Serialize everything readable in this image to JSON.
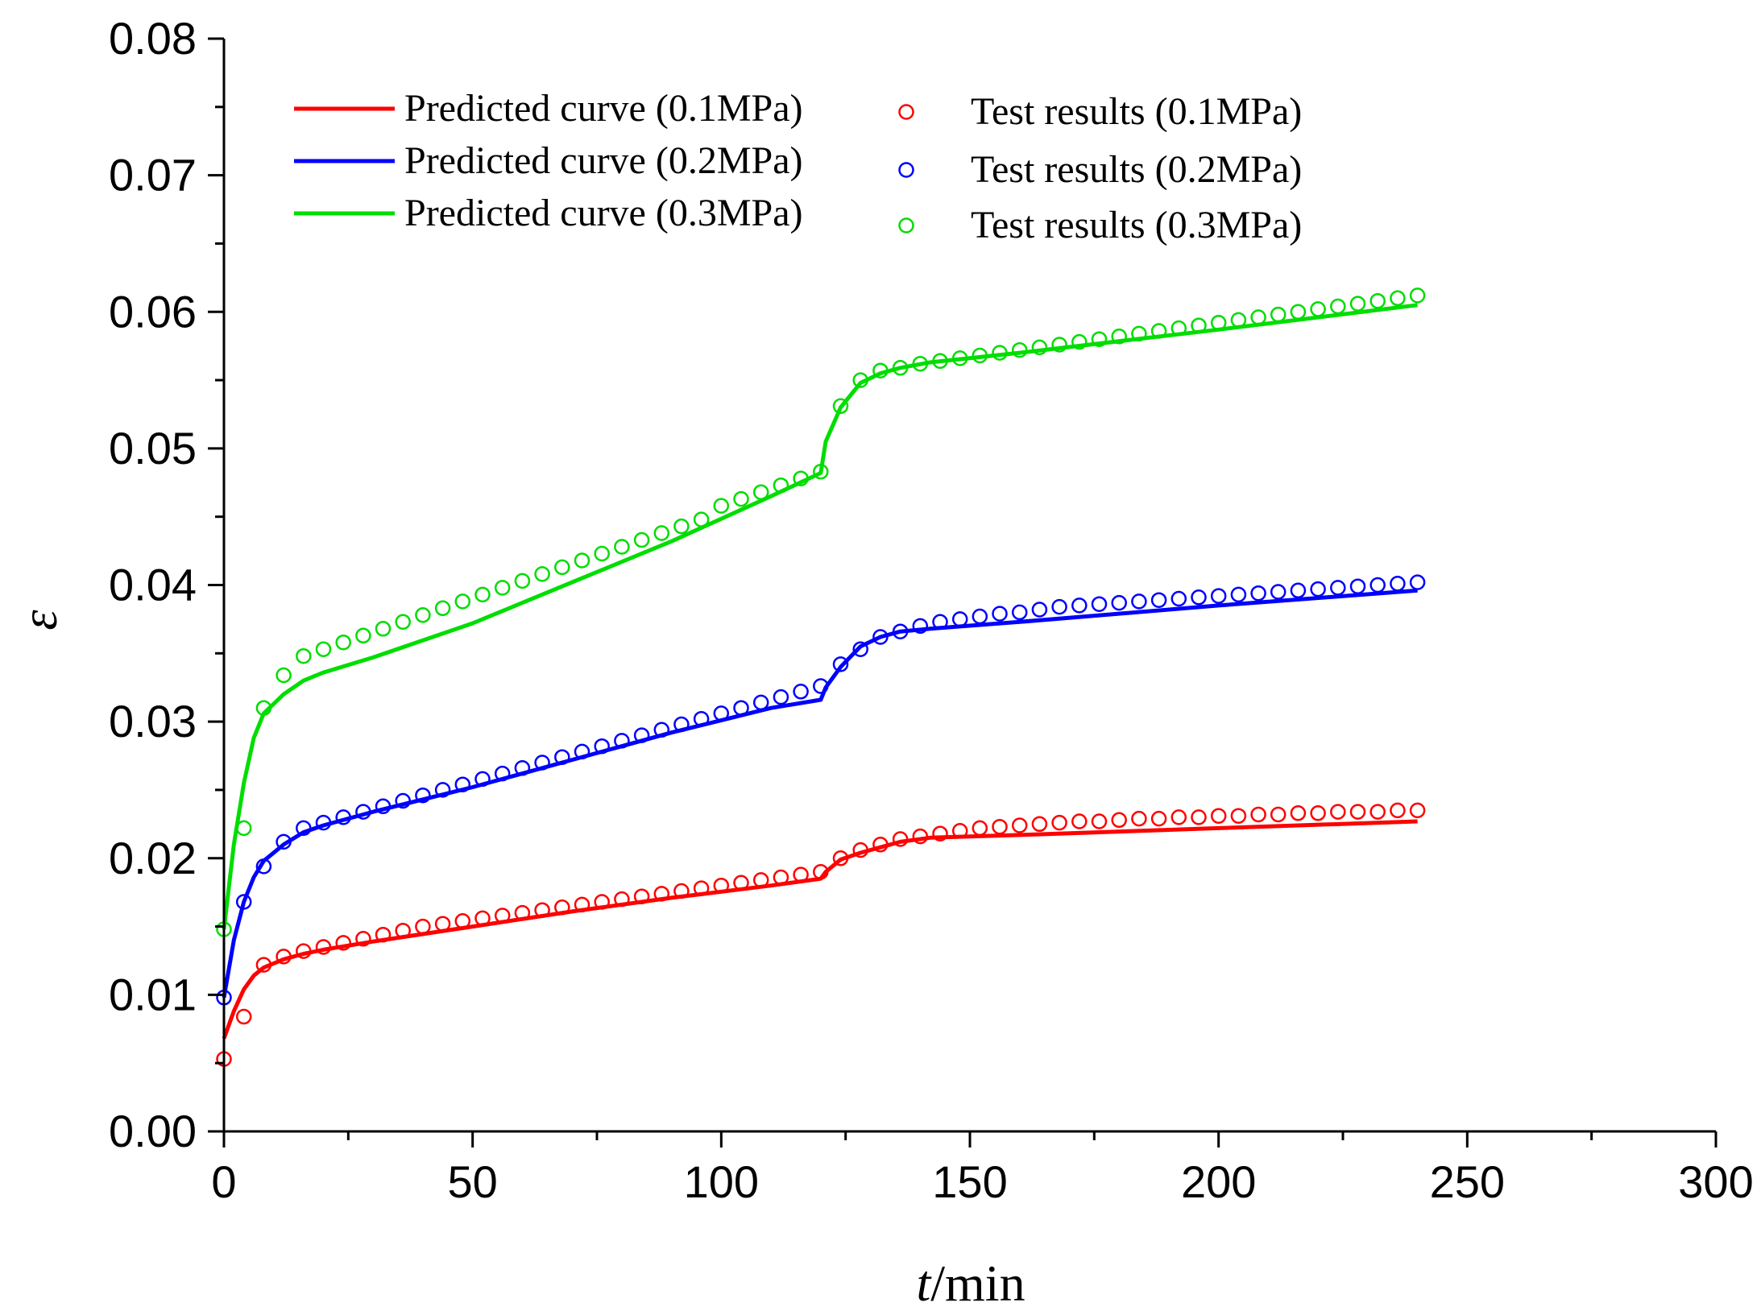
{
  "chart_data": {
    "type": "line",
    "xlabel_italic": "t",
    "xlabel_rest": "/min",
    "ylabel": "ε",
    "xlim": [
      0,
      300
    ],
    "ylim": [
      0,
      0.08
    ],
    "x_ticks": [
      "0",
      "50",
      "100",
      "150",
      "200",
      "250",
      "300"
    ],
    "y_ticks": [
      "0.00",
      "0.01",
      "0.02",
      "0.03",
      "0.04",
      "0.05",
      "0.06",
      "0.07",
      "0.08"
    ],
    "grid": false,
    "legend_position": "top-left",
    "lines": [
      {
        "name": "Predicted curve (0.1MPa)",
        "color": "#ff0000",
        "points": [
          [
            0,
            0.0068
          ],
          [
            2,
            0.0088
          ],
          [
            4,
            0.0104
          ],
          [
            6,
            0.0114
          ],
          [
            8,
            0.012
          ],
          [
            12,
            0.0126
          ],
          [
            16,
            0.013
          ],
          [
            20,
            0.0133
          ],
          [
            30,
            0.0139
          ],
          [
            50,
            0.015
          ],
          [
            70,
            0.0161
          ],
          [
            90,
            0.0171
          ],
          [
            110,
            0.018
          ],
          [
            120,
            0.0185
          ],
          [
            121,
            0.019
          ],
          [
            124,
            0.0199
          ],
          [
            128,
            0.0204
          ],
          [
            132,
            0.0208
          ],
          [
            136,
            0.0212
          ],
          [
            142,
            0.0215
          ],
          [
            160,
            0.0217
          ],
          [
            200,
            0.0222
          ],
          [
            240,
            0.0227
          ]
        ]
      },
      {
        "name": "Predicted curve (0.2MPa)",
        "color": "#0000ff",
        "points": [
          [
            0,
            0.0098
          ],
          [
            2,
            0.014
          ],
          [
            4,
            0.0168
          ],
          [
            6,
            0.0186
          ],
          [
            8,
            0.0198
          ],
          [
            12,
            0.021
          ],
          [
            16,
            0.0219
          ],
          [
            20,
            0.0224
          ],
          [
            30,
            0.0234
          ],
          [
            50,
            0.0252
          ],
          [
            70,
            0.0272
          ],
          [
            90,
            0.0292
          ],
          [
            110,
            0.031
          ],
          [
            120,
            0.0316
          ],
          [
            121,
            0.0325
          ],
          [
            124,
            0.034
          ],
          [
            128,
            0.0355
          ],
          [
            132,
            0.0362
          ],
          [
            136,
            0.0366
          ],
          [
            142,
            0.0368
          ],
          [
            160,
            0.0373
          ],
          [
            200,
            0.0385
          ],
          [
            240,
            0.0396
          ]
        ]
      },
      {
        "name": "Predicted curve (0.3MPa)",
        "color": "#00dd00",
        "points": [
          [
            0,
            0.0148
          ],
          [
            2,
            0.021
          ],
          [
            4,
            0.0255
          ],
          [
            6,
            0.0288
          ],
          [
            8,
            0.0306
          ],
          [
            12,
            0.032
          ],
          [
            16,
            0.033
          ],
          [
            20,
            0.0336
          ],
          [
            30,
            0.0347
          ],
          [
            50,
            0.0372
          ],
          [
            70,
            0.0402
          ],
          [
            90,
            0.0432
          ],
          [
            110,
            0.0465
          ],
          [
            120,
            0.0482
          ],
          [
            121,
            0.0505
          ],
          [
            124,
            0.053
          ],
          [
            128,
            0.0548
          ],
          [
            132,
            0.0555
          ],
          [
            136,
            0.0559
          ],
          [
            142,
            0.0563
          ],
          [
            160,
            0.057
          ],
          [
            200,
            0.0587
          ],
          [
            240,
            0.0605
          ]
        ]
      }
    ],
    "scatter": [
      {
        "name": "Test results (0.1MPa)",
        "color": "#ff0000",
        "points": [
          [
            0,
            0.0053
          ],
          [
            4,
            0.0084
          ],
          [
            8,
            0.0122
          ],
          [
            12,
            0.0128
          ],
          [
            16,
            0.0132
          ],
          [
            20,
            0.0135
          ],
          [
            24,
            0.0138
          ],
          [
            28,
            0.0141
          ],
          [
            32,
            0.0144
          ],
          [
            36,
            0.0147
          ],
          [
            40,
            0.015
          ],
          [
            44,
            0.0152
          ],
          [
            48,
            0.0154
          ],
          [
            52,
            0.0156
          ],
          [
            56,
            0.0158
          ],
          [
            60,
            0.016
          ],
          [
            64,
            0.0162
          ],
          [
            68,
            0.0164
          ],
          [
            72,
            0.0166
          ],
          [
            76,
            0.0168
          ],
          [
            80,
            0.017
          ],
          [
            84,
            0.0172
          ],
          [
            88,
            0.0174
          ],
          [
            92,
            0.0176
          ],
          [
            96,
            0.0178
          ],
          [
            100,
            0.018
          ],
          [
            104,
            0.0182
          ],
          [
            108,
            0.0184
          ],
          [
            112,
            0.0186
          ],
          [
            116,
            0.0188
          ],
          [
            120,
            0.019
          ],
          [
            124,
            0.02
          ],
          [
            128,
            0.0206
          ],
          [
            132,
            0.021
          ],
          [
            136,
            0.0214
          ],
          [
            140,
            0.0216
          ],
          [
            144,
            0.0218
          ],
          [
            148,
            0.022
          ],
          [
            152,
            0.0222
          ],
          [
            156,
            0.0223
          ],
          [
            160,
            0.0224
          ],
          [
            164,
            0.0225
          ],
          [
            168,
            0.0226
          ],
          [
            172,
            0.0227
          ],
          [
            176,
            0.0227
          ],
          [
            180,
            0.0228
          ],
          [
            184,
            0.0229
          ],
          [
            188,
            0.0229
          ],
          [
            192,
            0.023
          ],
          [
            196,
            0.023
          ],
          [
            200,
            0.0231
          ],
          [
            204,
            0.0231
          ],
          [
            208,
            0.0232
          ],
          [
            212,
            0.0232
          ],
          [
            216,
            0.0233
          ],
          [
            220,
            0.0233
          ],
          [
            224,
            0.0234
          ],
          [
            228,
            0.0234
          ],
          [
            232,
            0.0234
          ],
          [
            236,
            0.0235
          ],
          [
            240,
            0.0235
          ]
        ]
      },
      {
        "name": "Test results (0.2MPa)",
        "color": "#0000ff",
        "points": [
          [
            0,
            0.0098
          ],
          [
            4,
            0.0168
          ],
          [
            8,
            0.0194
          ],
          [
            12,
            0.0212
          ],
          [
            16,
            0.0222
          ],
          [
            20,
            0.0226
          ],
          [
            24,
            0.023
          ],
          [
            28,
            0.0234
          ],
          [
            32,
            0.0238
          ],
          [
            36,
            0.0242
          ],
          [
            40,
            0.0246
          ],
          [
            44,
            0.025
          ],
          [
            48,
            0.0254
          ],
          [
            52,
            0.0258
          ],
          [
            56,
            0.0262
          ],
          [
            60,
            0.0266
          ],
          [
            64,
            0.027
          ],
          [
            68,
            0.0274
          ],
          [
            72,
            0.0278
          ],
          [
            76,
            0.0282
          ],
          [
            80,
            0.0286
          ],
          [
            84,
            0.029
          ],
          [
            88,
            0.0294
          ],
          [
            92,
            0.0298
          ],
          [
            96,
            0.0302
          ],
          [
            100,
            0.0306
          ],
          [
            104,
            0.031
          ],
          [
            108,
            0.0314
          ],
          [
            112,
            0.0318
          ],
          [
            116,
            0.0322
          ],
          [
            120,
            0.0326
          ],
          [
            124,
            0.0342
          ],
          [
            128,
            0.0353
          ],
          [
            132,
            0.0362
          ],
          [
            136,
            0.0366
          ],
          [
            140,
            0.037
          ],
          [
            144,
            0.0373
          ],
          [
            148,
            0.0375
          ],
          [
            152,
            0.0377
          ],
          [
            156,
            0.0379
          ],
          [
            160,
            0.038
          ],
          [
            164,
            0.0382
          ],
          [
            168,
            0.0384
          ],
          [
            172,
            0.0385
          ],
          [
            176,
            0.0386
          ],
          [
            180,
            0.0387
          ],
          [
            184,
            0.0388
          ],
          [
            188,
            0.0389
          ],
          [
            192,
            0.039
          ],
          [
            196,
            0.0391
          ],
          [
            200,
            0.0392
          ],
          [
            204,
            0.0393
          ],
          [
            208,
            0.0394
          ],
          [
            212,
            0.0395
          ],
          [
            216,
            0.0396
          ],
          [
            220,
            0.0397
          ],
          [
            224,
            0.0398
          ],
          [
            228,
            0.0399
          ],
          [
            232,
            0.04
          ],
          [
            236,
            0.0401
          ],
          [
            240,
            0.0402
          ]
        ]
      },
      {
        "name": "Test results (0.3MPa)",
        "color": "#00dd00",
        "points": [
          [
            0,
            0.0148
          ],
          [
            4,
            0.0222
          ],
          [
            8,
            0.031
          ],
          [
            12,
            0.0334
          ],
          [
            16,
            0.0348
          ],
          [
            20,
            0.0353
          ],
          [
            24,
            0.0358
          ],
          [
            28,
            0.0363
          ],
          [
            32,
            0.0368
          ],
          [
            36,
            0.0373
          ],
          [
            40,
            0.0378
          ],
          [
            44,
            0.0383
          ],
          [
            48,
            0.0388
          ],
          [
            52,
            0.0393
          ],
          [
            56,
            0.0398
          ],
          [
            60,
            0.0403
          ],
          [
            64,
            0.0408
          ],
          [
            68,
            0.0413
          ],
          [
            72,
            0.0418
          ],
          [
            76,
            0.0423
          ],
          [
            80,
            0.0428
          ],
          [
            84,
            0.0433
          ],
          [
            88,
            0.0438
          ],
          [
            92,
            0.0443
          ],
          [
            96,
            0.0448
          ],
          [
            100,
            0.0458
          ],
          [
            104,
            0.0463
          ],
          [
            108,
            0.0468
          ],
          [
            112,
            0.0473
          ],
          [
            116,
            0.0478
          ],
          [
            120,
            0.0483
          ],
          [
            124,
            0.0531
          ],
          [
            128,
            0.055
          ],
          [
            132,
            0.0557
          ],
          [
            136,
            0.0559
          ],
          [
            140,
            0.0562
          ],
          [
            144,
            0.0564
          ],
          [
            148,
            0.0566
          ],
          [
            152,
            0.0568
          ],
          [
            156,
            0.057
          ],
          [
            160,
            0.0572
          ],
          [
            164,
            0.0574
          ],
          [
            168,
            0.0576
          ],
          [
            172,
            0.0578
          ],
          [
            176,
            0.058
          ],
          [
            180,
            0.0582
          ],
          [
            184,
            0.0584
          ],
          [
            188,
            0.0586
          ],
          [
            192,
            0.0588
          ],
          [
            196,
            0.059
          ],
          [
            200,
            0.0592
          ],
          [
            204,
            0.0594
          ],
          [
            208,
            0.0596
          ],
          [
            212,
            0.0598
          ],
          [
            216,
            0.06
          ],
          [
            220,
            0.0602
          ],
          [
            224,
            0.0604
          ],
          [
            228,
            0.0606
          ],
          [
            232,
            0.0608
          ],
          [
            236,
            0.061
          ],
          [
            240,
            0.0612
          ]
        ]
      }
    ]
  }
}
